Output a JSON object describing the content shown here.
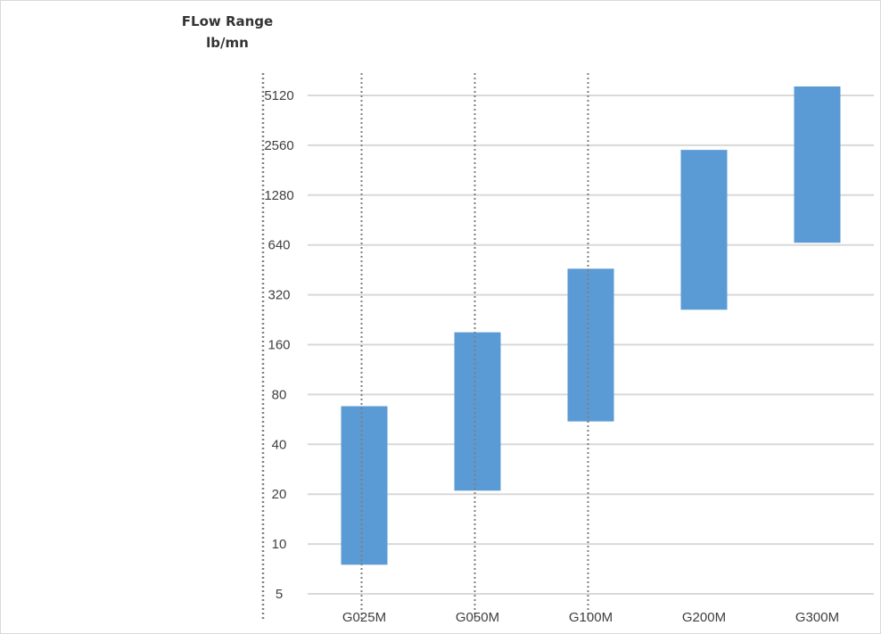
{
  "chart_data": {
    "type": "bar",
    "subtype": "floating-range",
    "title": "",
    "ylabel": [
      "FLow Range",
      "lb/mn"
    ],
    "xlabel": "",
    "yscale": "log2",
    "ylim": [
      5,
      6400
    ],
    "yticks": [
      5,
      10,
      20,
      40,
      80,
      160,
      320,
      640,
      1280,
      2560,
      5120
    ],
    "grid": true,
    "legend": "none",
    "bar_color": "#5b9bd5",
    "gridline_color": "#d9d9d9",
    "categories": [
      "G025M",
      "G050M",
      "G100M",
      "G200M",
      "G300M"
    ],
    "ranges": [
      {
        "category": "G025M",
        "low": 7.5,
        "high": 68
      },
      {
        "category": "G050M",
        "low": 21,
        "high": 190
      },
      {
        "category": "G100M",
        "low": 55,
        "high": 460
      },
      {
        "category": "G200M",
        "low": 260,
        "high": 2400
      },
      {
        "category": "G300M",
        "low": 660,
        "high": 5800
      }
    ]
  }
}
